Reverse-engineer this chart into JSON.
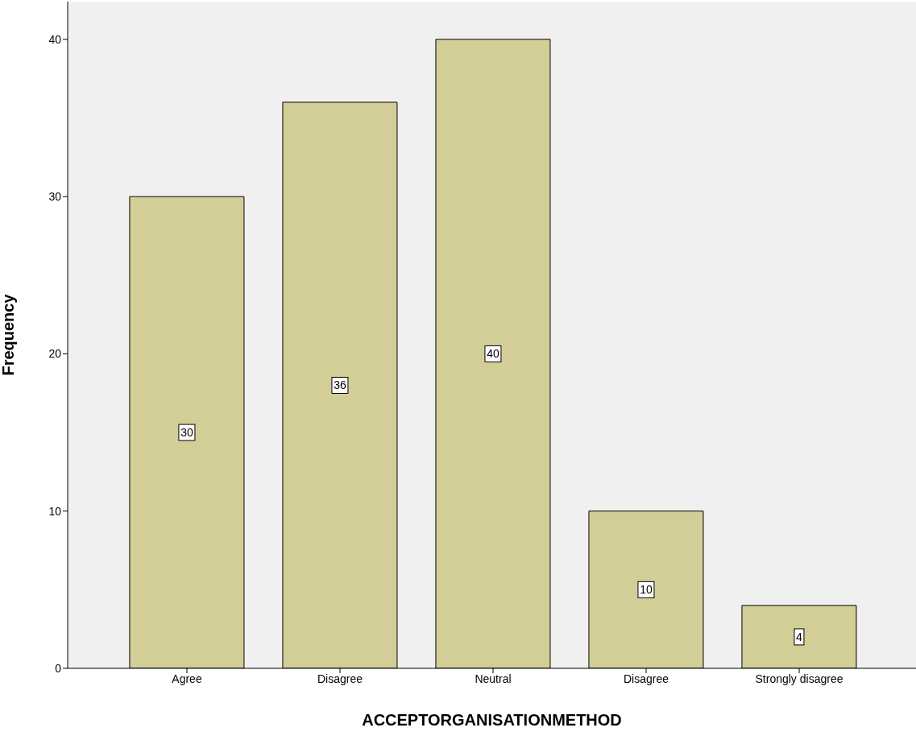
{
  "chart_data": {
    "type": "bar",
    "xlabel": "ACCEPTORGANISATIONMETHOD",
    "ylabel": "Frequency",
    "categories": [
      "Agree",
      "Disagree",
      "Neutral",
      "Disagree",
      "Strongly disagree"
    ],
    "values": [
      30,
      36,
      40,
      10,
      4
    ],
    "color": "#d3ce97",
    "ylim": [
      0,
      42.4
    ],
    "yticks": [
      0,
      10,
      20,
      30,
      40
    ],
    "grid": false,
    "data_labels": true
  }
}
